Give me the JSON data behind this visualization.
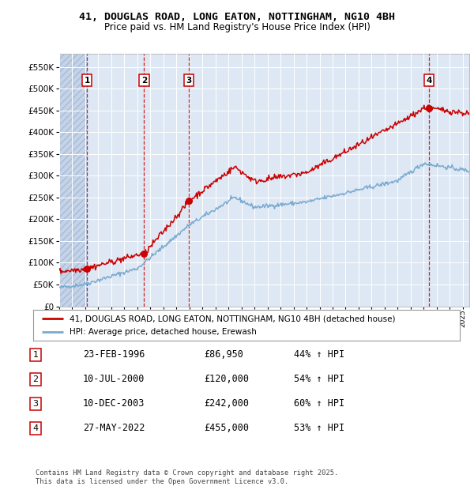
{
  "title_line1": "41, DOUGLAS ROAD, LONG EATON, NOTTINGHAM, NG10 4BH",
  "title_line2": "Price paid vs. HM Land Registry's House Price Index (HPI)",
  "ytick_values": [
    0,
    50000,
    100000,
    150000,
    200000,
    250000,
    300000,
    350000,
    400000,
    450000,
    500000,
    550000
  ],
  "ylim": [
    0,
    580000
  ],
  "xlim_start": 1994.0,
  "xlim_end": 2025.5,
  "bg_color": "#dde8f4",
  "hatch_area_color": "#c4d3e8",
  "grid_color": "#ffffff",
  "red_line_color": "#cc0000",
  "blue_line_color": "#7aaad0",
  "purchases": [
    {
      "date_num": 1996.14,
      "price": 86950,
      "label": "1"
    },
    {
      "date_num": 2000.52,
      "price": 120000,
      "label": "2"
    },
    {
      "date_num": 2003.94,
      "price": 242000,
      "label": "3"
    },
    {
      "date_num": 2022.41,
      "price": 455000,
      "label": "4"
    }
  ],
  "table_rows": [
    {
      "num": "1",
      "date": "23-FEB-1996",
      "price": "£86,950",
      "pct": "44% ↑ HPI"
    },
    {
      "num": "2",
      "date": "10-JUL-2000",
      "price": "£120,000",
      "pct": "54% ↑ HPI"
    },
    {
      "num": "3",
      "date": "10-DEC-2003",
      "price": "£242,000",
      "pct": "60% ↑ HPI"
    },
    {
      "num": "4",
      "date": "27-MAY-2022",
      "price": "£455,000",
      "pct": "53% ↑ HPI"
    }
  ],
  "legend_entries": [
    "41, DOUGLAS ROAD, LONG EATON, NOTTINGHAM, NG10 4BH (detached house)",
    "HPI: Average price, detached house, Erewash"
  ],
  "footer": "Contains HM Land Registry data © Crown copyright and database right 2025.\nThis data is licensed under the Open Government Licence v3.0."
}
